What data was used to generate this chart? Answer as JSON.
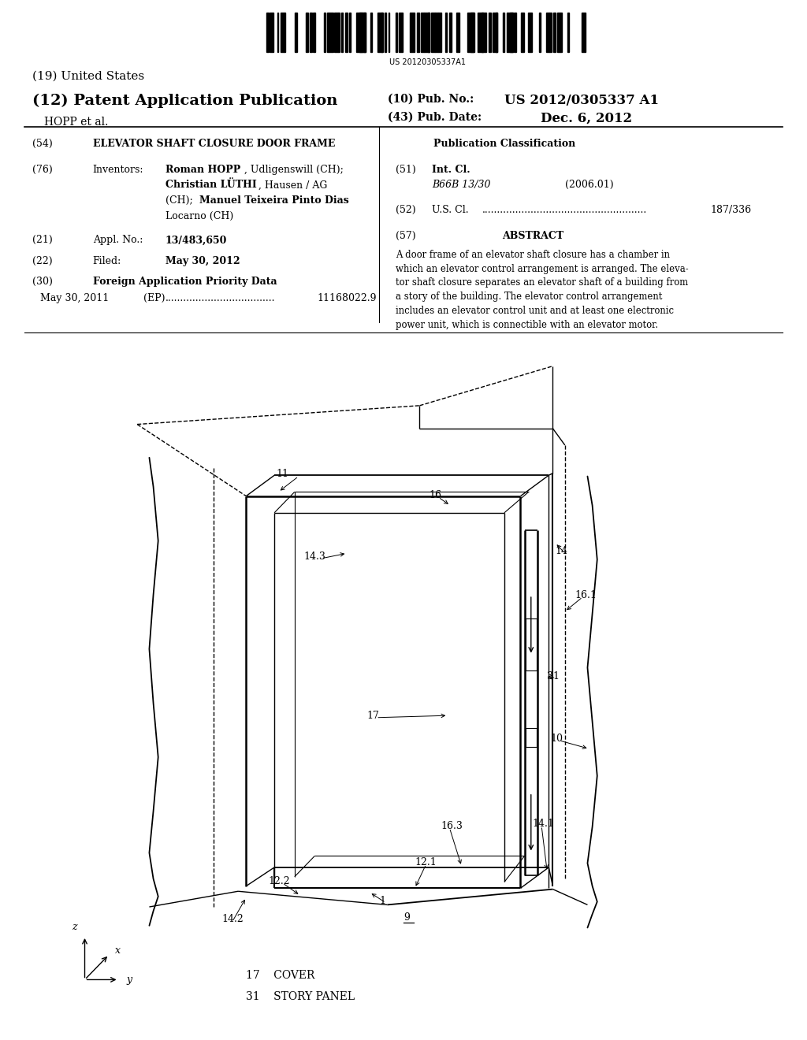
{
  "bg_color": "#ffffff",
  "barcode_text": "US 20120305337A1",
  "title_19": "(19) United States",
  "title_12": "(12) Patent Application Publication",
  "pub_no_label": "(10) Pub. No.:",
  "pub_no_value": "US 2012/0305337 A1",
  "authors": "HOPP et al.",
  "pub_date_label": "(43) Pub. Date:",
  "pub_date_value": "Dec. 6, 2012",
  "field_54_label": "(54)",
  "field_54_value": "ELEVATOR SHAFT CLOSURE DOOR FRAME",
  "field_76_label": "(76)",
  "field_76_name": "Inventors:",
  "field_21_label": "(21)",
  "field_21_name": "Appl. No.:",
  "field_21_value": "13/483,650",
  "field_22_label": "(22)",
  "field_22_name": "Filed:",
  "field_22_value": "May 30, 2012",
  "field_30_label": "(30)",
  "field_30_name": "Foreign Application Priority Data",
  "field_30_date": "May 30, 2011",
  "field_30_ep": "(EP)",
  "field_30_num": "11168022.9",
  "pub_class_label": "Publication Classification",
  "field_51_label": "(51)",
  "field_51_name": "Int. Cl.",
  "field_51_class": "B66B 13/30",
  "field_51_year": "(2006.01)",
  "field_52_label": "(52)",
  "field_52_name": "U.S. Cl.",
  "field_52_value": "187/336",
  "field_57_label": "(57)",
  "field_57_name": "ABSTRACT",
  "abstract_lines": [
    "A door frame of an elevator shaft closure has a chamber in",
    "which an elevator control arrangement is arranged. The eleva-",
    "tor shaft closure separates an elevator shaft of a building from",
    "a story of the building. The elevator control arrangement",
    "includes an elevator control unit and at least one electronic",
    "power unit, which is connectible with an elevator motor."
  ],
  "legend_17": "17    COVER",
  "legend_31": "31    STORY PANEL"
}
